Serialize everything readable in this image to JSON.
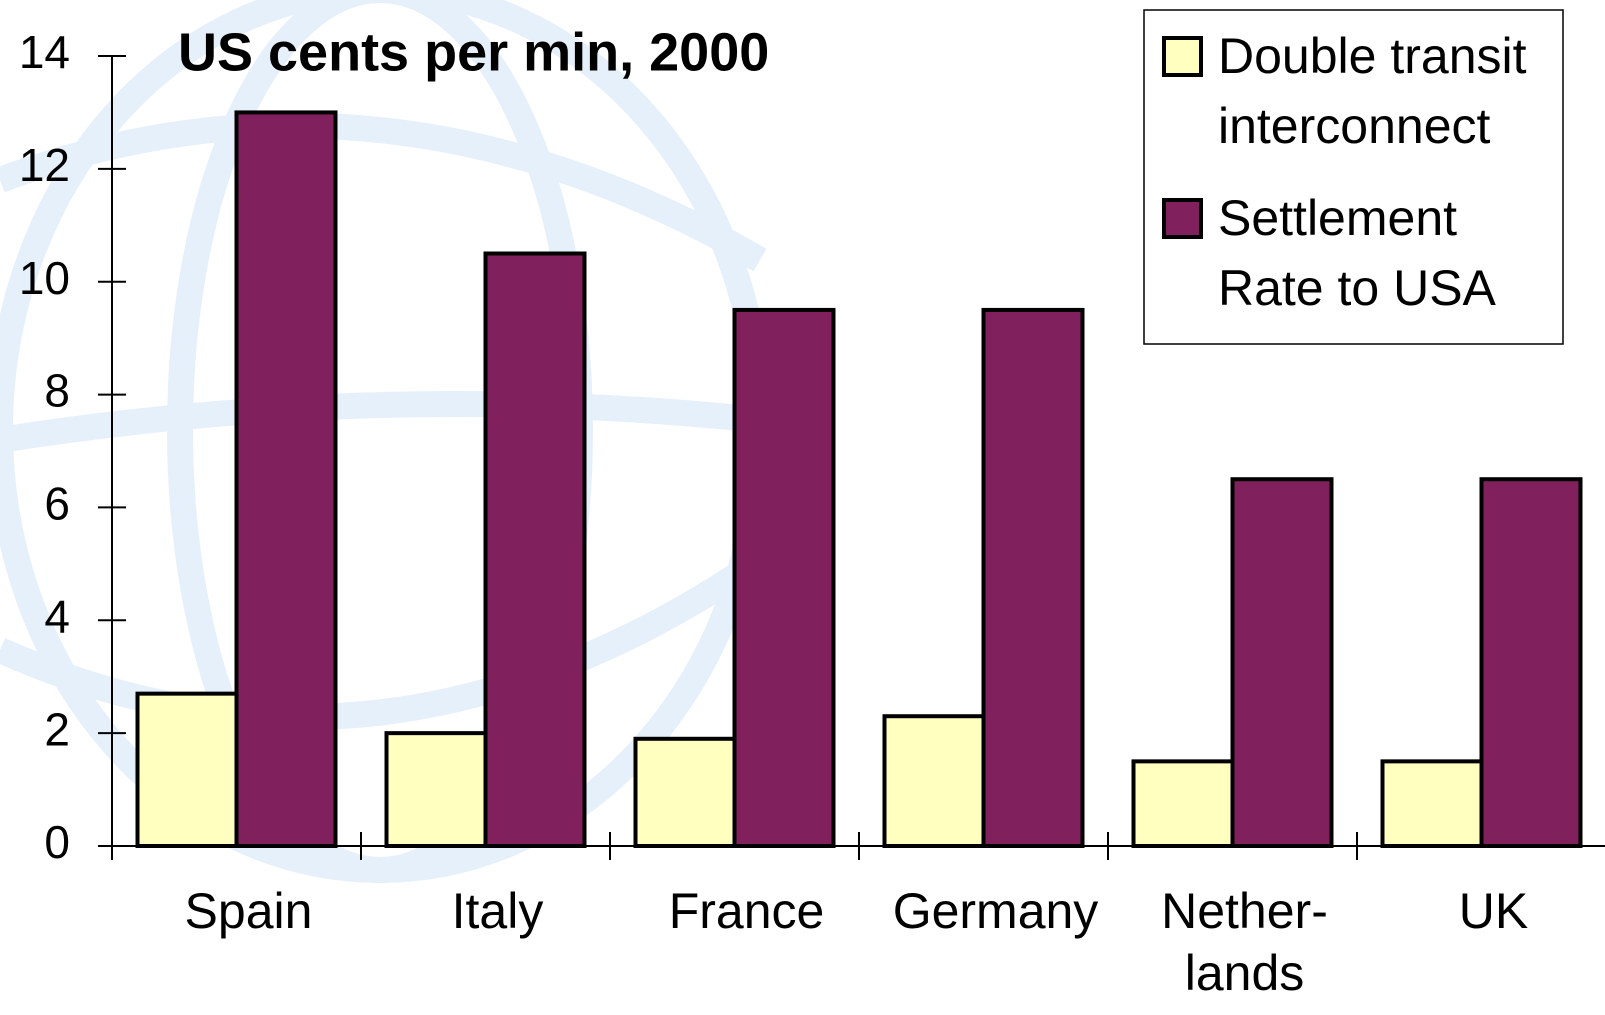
{
  "chart_data": {
    "type": "bar",
    "title": "US cents per min, 2000",
    "categories": [
      "Spain",
      "Italy",
      "France",
      "Germany",
      "Nether-\nlands",
      "UK"
    ],
    "series": [
      {
        "name": "Double transit\ninterconnect",
        "color": "#ffffc0",
        "values": [
          2.7,
          2.0,
          1.9,
          2.3,
          1.5,
          1.5
        ]
      },
      {
        "name": "Settlement\nRate to USA",
        "color": "#80205c",
        "values": [
          13,
          10.5,
          9.5,
          9.5,
          6.5,
          6.5
        ]
      }
    ],
    "ylim": [
      0,
      14
    ],
    "yticks": [
      0,
      2,
      4,
      6,
      8,
      10,
      12,
      14
    ],
    "legend": "top-right"
  }
}
